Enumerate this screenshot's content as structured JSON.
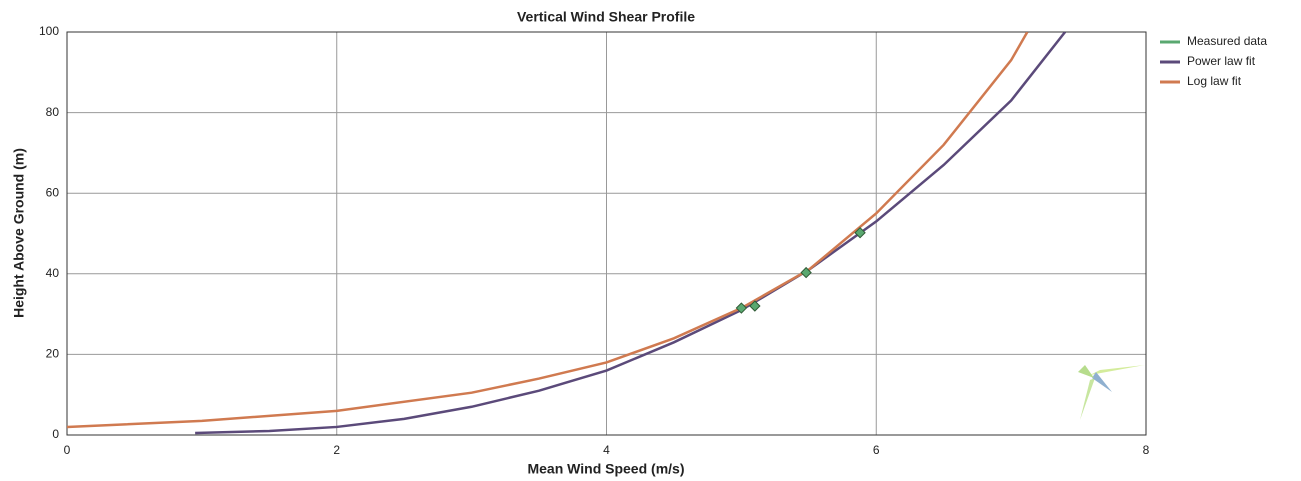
{
  "chart_data": {
    "type": "line",
    "title": "Vertical Wind Shear Profile",
    "x_label": "Mean Wind Speed (m/s)",
    "y_label": "Height Above Ground (m)",
    "xlim": [
      0,
      8
    ],
    "xticks": [
      0,
      2,
      4,
      6,
      8
    ],
    "ylim": [
      0,
      100
    ],
    "yticks": [
      0,
      20,
      40,
      60,
      80,
      100
    ],
    "grid": true,
    "legend": "right",
    "series": [
      {
        "name": "Measured data",
        "color": "#5aa870",
        "type": "scatter",
        "x": [
          5.0,
          5.1,
          5.48,
          5.88
        ],
        "values": [
          31.5,
          32,
          40.3,
          50.2
        ]
      },
      {
        "name": "Power law fit",
        "color": "#5b4a7a",
        "type": "line",
        "x": [
          0.95,
          1.5,
          2,
          2.5,
          3,
          3.5,
          4,
          4.5,
          5,
          5.5,
          6,
          6.5,
          7,
          7.4
        ],
        "values": [
          0.5,
          1,
          2,
          4,
          7,
          11,
          16,
          23,
          31,
          41,
          53,
          67,
          83,
          100
        ]
      },
      {
        "name": "Log law fit",
        "color": "#d07a50",
        "type": "line",
        "x": [
          0,
          1,
          2,
          3,
          3.5,
          4,
          4.5,
          5,
          5.5,
          6,
          6.5,
          7,
          7.12
        ],
        "values": [
          2,
          3.5,
          6,
          10.5,
          14,
          18,
          24,
          31.5,
          41,
          55,
          72,
          93,
          100
        ]
      }
    ]
  }
}
